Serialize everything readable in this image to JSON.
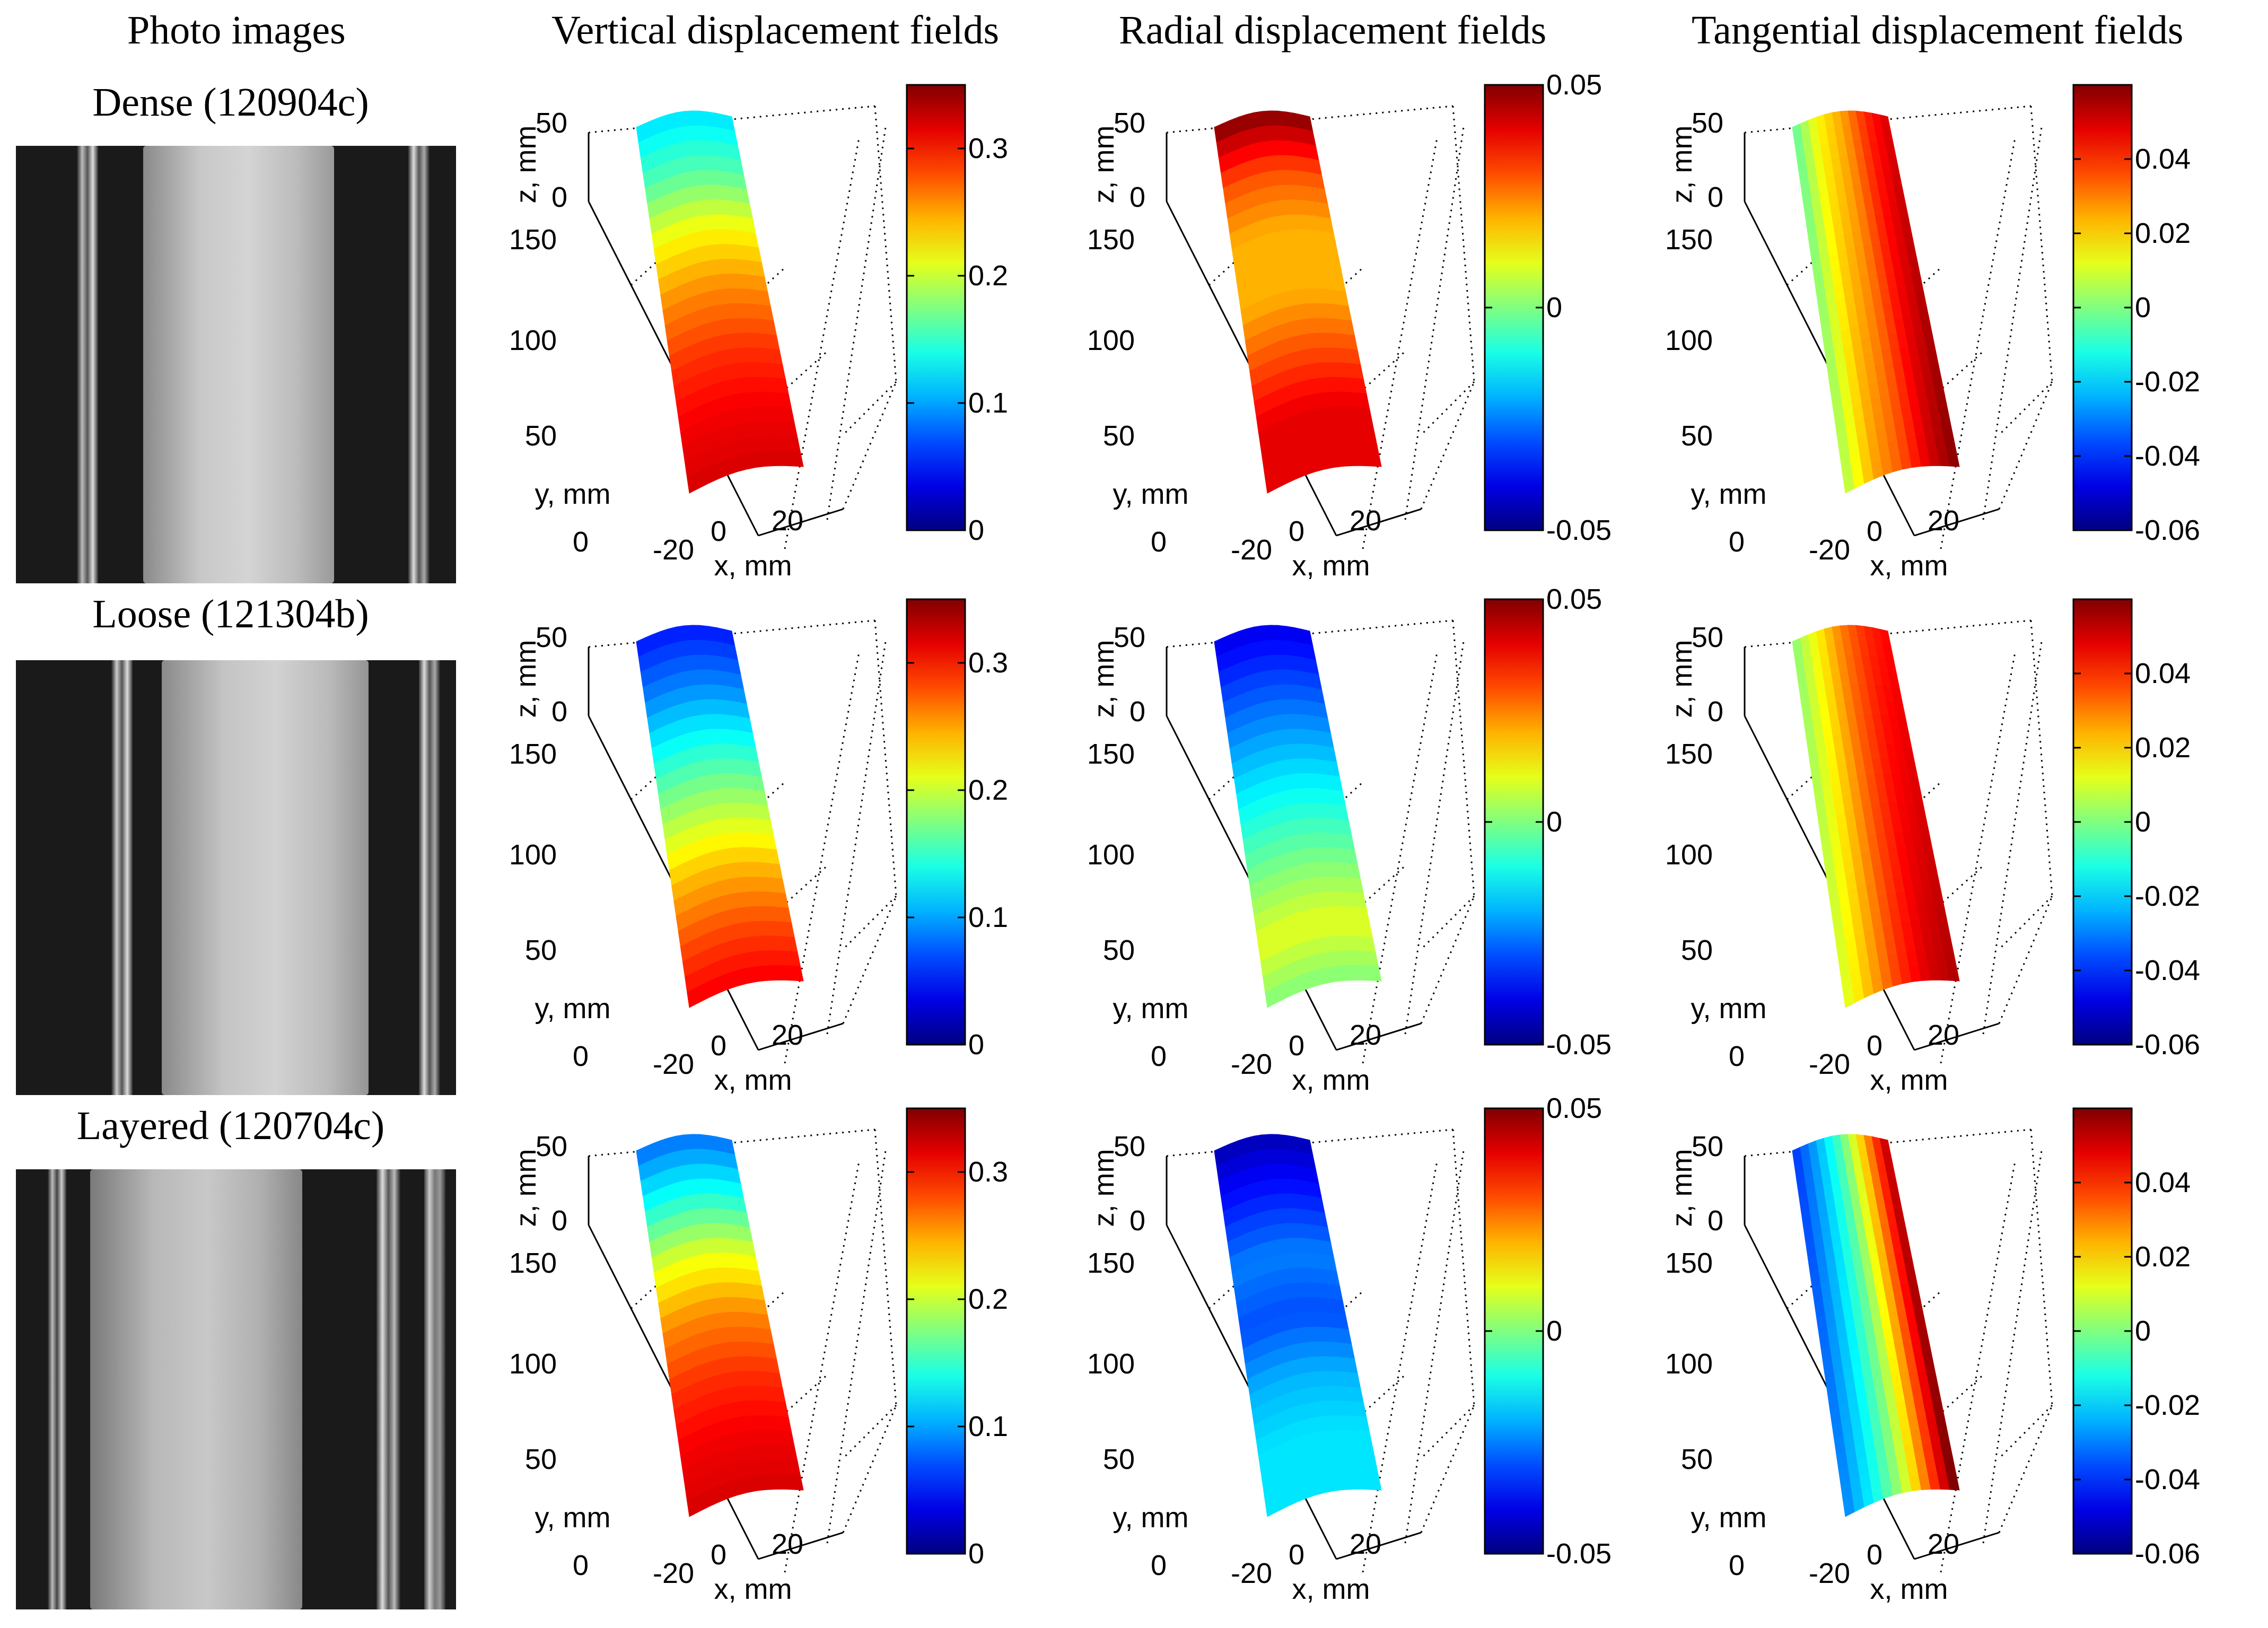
{
  "column_titles": {
    "photos": "Photo images",
    "vertical": "Vertical displacement fields",
    "radial": "Radial displacement fields",
    "tangential": "Tangential displacement fields"
  },
  "rows": [
    {
      "label": "Dense (120904c)"
    },
    {
      "label": "Loose (121304b)"
    },
    {
      "label": "Layered (120704c)"
    }
  ],
  "colors": {
    "jet_low": "#00008f",
    "jet_mid": "#7fff7f",
    "jet_high": "#800000"
  },
  "chart_data": [
    {
      "type": "heatmap",
      "panel": "dense-vertical",
      "zlabel": "z, mm",
      "ylabel": "y, mm",
      "xlabel": "x, mm",
      "z_ticks": [
        "50",
        "0"
      ],
      "y_ticks": [
        "150",
        "100",
        "50",
        "0"
      ],
      "x_ticks": [
        "-20",
        "0",
        "20"
      ],
      "colorbar_ticks": [
        "0.3",
        "0.2",
        "0.1",
        "0"
      ],
      "clim": [
        0,
        0.35
      ],
      "field_top_to_bottom": [
        0.12,
        0.16,
        0.22,
        0.26,
        0.29,
        0.31,
        0.32
      ]
    },
    {
      "type": "heatmap",
      "panel": "dense-radial",
      "zlabel": "z, mm",
      "ylabel": "y, mm",
      "xlabel": "x, mm",
      "z_ticks": [
        "50",
        "0"
      ],
      "y_ticks": [
        "150",
        "100",
        "50",
        "0"
      ],
      "x_ticks": [
        "-20",
        "0",
        "20"
      ],
      "colorbar_ticks": [
        "0.05",
        "0",
        "-0.05"
      ],
      "clim": [
        -0.05,
        0.05
      ],
      "field_top_to_bottom": [
        0.05,
        0.03,
        0.02,
        0.02,
        0.03,
        0.04,
        0.04
      ]
    },
    {
      "type": "heatmap",
      "panel": "dense-tangential",
      "zlabel": "z, mm",
      "ylabel": "y, mm",
      "xlabel": "x, mm",
      "z_ticks": [
        "50",
        "0"
      ],
      "y_ticks": [
        "150",
        "100",
        "50",
        "0"
      ],
      "x_ticks": [
        "-20",
        "0",
        "20"
      ],
      "colorbar_ticks": [
        "0.04",
        "0.02",
        "0",
        "-0.02",
        "-0.04",
        "-0.06"
      ],
      "clim": [
        -0.06,
        0.06
      ],
      "field_left_to_right": [
        0.0,
        0.02,
        0.03,
        0.045,
        0.055
      ]
    },
    {
      "type": "heatmap",
      "panel": "loose-vertical",
      "zlabel": "z, mm",
      "ylabel": "y, mm",
      "xlabel": "x, mm",
      "z_ticks": [
        "50",
        "0"
      ],
      "y_ticks": [
        "150",
        "100",
        "50",
        "0"
      ],
      "x_ticks": [
        "-20",
        "0",
        "20"
      ],
      "colorbar_ticks": [
        "0.3",
        "0.2",
        "0.1",
        "0"
      ],
      "clim": [
        0,
        0.35
      ],
      "field_top_to_bottom": [
        0.05,
        0.09,
        0.14,
        0.19,
        0.24,
        0.28,
        0.31
      ]
    },
    {
      "type": "heatmap",
      "panel": "loose-radial",
      "zlabel": "z, mm",
      "ylabel": "y, mm",
      "xlabel": "x, mm",
      "z_ticks": [
        "50",
        "0"
      ],
      "y_ticks": [
        "150",
        "100",
        "50",
        "0"
      ],
      "x_ticks": [
        "-20",
        "0",
        "20"
      ],
      "colorbar_ticks": [
        "0.05",
        "0",
        "-0.05"
      ],
      "clim": [
        -0.05,
        0.05
      ],
      "field_top_to_bottom": [
        -0.04,
        -0.03,
        -0.02,
        -0.01,
        0.0,
        0.01,
        0.0
      ]
    },
    {
      "type": "heatmap",
      "panel": "loose-tangential",
      "zlabel": "z, mm",
      "ylabel": "y, mm",
      "xlabel": "x, mm",
      "z_ticks": [
        "50",
        "0"
      ],
      "y_ticks": [
        "150",
        "100",
        "50",
        "0"
      ],
      "x_ticks": [
        "-20",
        "0",
        "20"
      ],
      "colorbar_ticks": [
        "0.04",
        "0.02",
        "0",
        "-0.02",
        "-0.04",
        "-0.06"
      ],
      "clim": [
        -0.06,
        0.06
      ],
      "field_left_to_right": [
        0.005,
        0.02,
        0.035,
        0.045,
        0.05
      ]
    },
    {
      "type": "heatmap",
      "panel": "layered-vertical",
      "zlabel": "z, mm",
      "ylabel": "y, mm",
      "xlabel": "x, mm",
      "z_ticks": [
        "50",
        "0"
      ],
      "y_ticks": [
        "150",
        "100",
        "50",
        "0"
      ],
      "x_ticks": [
        "-20",
        "0",
        "20"
      ],
      "colorbar_ticks": [
        "0.3",
        "0.2",
        "0.1",
        "0"
      ],
      "clim": [
        0,
        0.35
      ],
      "field_top_to_bottom": [
        0.08,
        0.14,
        0.21,
        0.26,
        0.29,
        0.31,
        0.32
      ]
    },
    {
      "type": "heatmap",
      "panel": "layered-radial",
      "zlabel": "z, mm",
      "ylabel": "y, mm",
      "xlabel": "x, mm",
      "z_ticks": [
        "50",
        "0"
      ],
      "y_ticks": [
        "150",
        "100",
        "50",
        "0"
      ],
      "x_ticks": [
        "-20",
        "0",
        "20"
      ],
      "colorbar_ticks": [
        "0.05",
        "0",
        "-0.05"
      ],
      "clim": [
        -0.05,
        0.05
      ],
      "field_top_to_bottom": [
        -0.045,
        -0.035,
        -0.025,
        -0.03,
        -0.02,
        -0.015,
        -0.015
      ]
    },
    {
      "type": "heatmap",
      "panel": "layered-tangential",
      "zlabel": "z, mm",
      "ylabel": "y, mm",
      "xlabel": "x, mm",
      "z_ticks": [
        "50",
        "0"
      ],
      "y_ticks": [
        "150",
        "100",
        "50",
        "0"
      ],
      "x_ticks": [
        "-20",
        "0",
        "20"
      ],
      "colorbar_ticks": [
        "0.04",
        "0.02",
        "0",
        "-0.02",
        "-0.04",
        "-0.06"
      ],
      "clim": [
        -0.06,
        0.06
      ],
      "field_left_to_right": [
        -0.035,
        -0.02,
        0.0,
        0.03,
        0.06
      ]
    }
  ]
}
